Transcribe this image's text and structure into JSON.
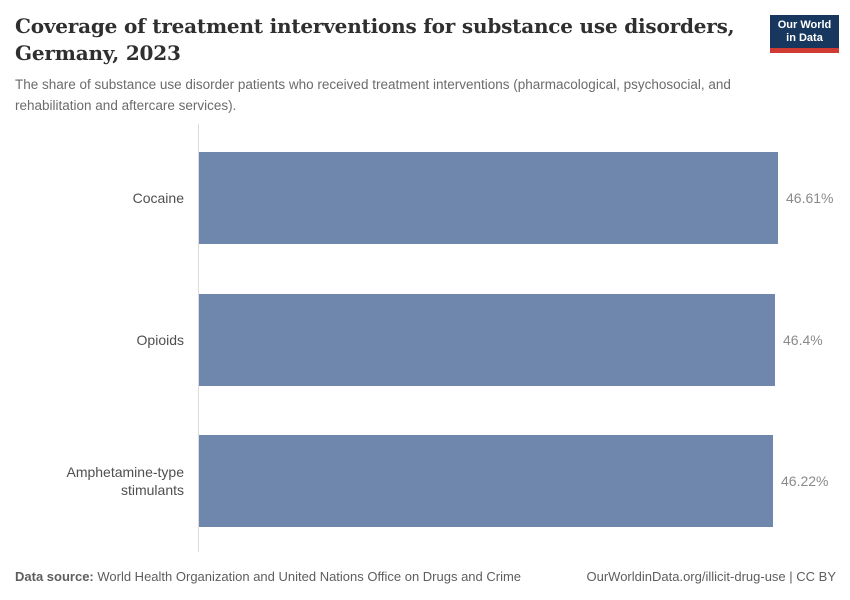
{
  "header": {
    "title": "Coverage of treatment interventions for substance use disorders, Germany, 2023",
    "subtitle": "The share of substance use disorder patients who received treatment interventions (pharmacological, psychosocial, and rehabilitation and aftercare services).",
    "logo": {
      "line1": "Our World",
      "line2": "in Data"
    }
  },
  "chart_data": {
    "type": "bar",
    "orientation": "horizontal",
    "title": "Coverage of treatment interventions for substance use disorders, Germany, 2023",
    "unit": "%",
    "categories": [
      "Cocaine",
      "Opioids",
      "Amphetamine-type stimulants"
    ],
    "values": [
      46.61,
      46.4,
      46.22
    ],
    "value_labels": [
      "46.61%",
      "46.4%",
      "46.22%"
    ],
    "xlabel": "",
    "ylabel": "",
    "grid": false,
    "legend": false,
    "axis": "single vertical baseline at zero, no ticks or gridlines"
  },
  "footer": {
    "datasource_label": "Data source:",
    "datasource_text": " World Health Organization and United Nations Office on Drugs and Crime",
    "link_text": "OurWorldinData.org/illicit-drug-use | CC BY"
  },
  "colors": {
    "bar": "#6f87ad",
    "axis_line": "#dcdcdc",
    "logo_bg": "#18375f",
    "logo_stripe": "#cf3b33",
    "title": "#2f2f2f",
    "subtitle": "#6b6b6b",
    "category_label": "#4f4f4f",
    "value_label": "#8a8a8a",
    "footer": "#5e5e5e"
  }
}
